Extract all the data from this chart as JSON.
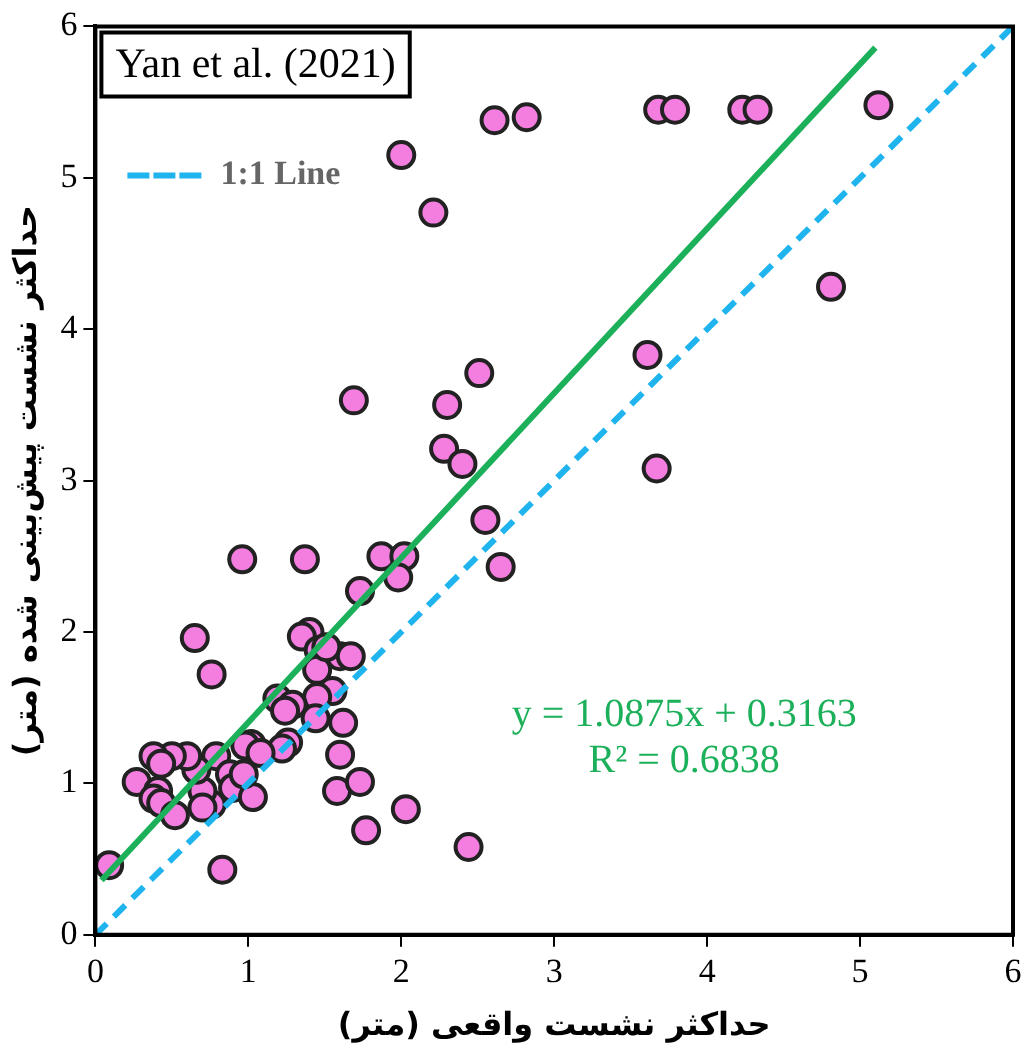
{
  "chart_data": {
    "type": "scatter",
    "xlabel": "حداکثر نشست واقعی (متر)",
    "ylabel": "حداکثر نشست پیش‌بینی شده (متر)",
    "xlim": [
      0,
      6
    ],
    "ylim": [
      0,
      6
    ],
    "xticks": [
      0,
      1,
      2,
      3,
      4,
      5,
      6
    ],
    "yticks": [
      0,
      1,
      2,
      3,
      4,
      5,
      6
    ],
    "grid": false,
    "legend": "top left",
    "annotations": [
      "Yan et al. (2021)",
      "y = 1.0875x + 0.3163",
      "R² = 0.6838"
    ],
    "series": [
      {
        "type": "scatter",
        "color": "#f47ee0",
        "marker": "circle",
        "x": [
          2.61,
          2.82,
          3.68,
          3.79,
          4.23,
          4.33,
          5.12,
          2.0,
          2.21,
          4.81,
          3.61,
          2.51,
          1.69,
          2.3,
          2.28,
          2.4,
          3.67,
          2.55,
          2.65,
          0.96,
          1.37,
          1.87,
          2.02,
          1.98,
          1.73,
          1.4,
          1.35,
          0.65,
          0.76,
          1.46,
          1.45,
          1.55,
          1.45,
          1.19,
          1.29,
          1.24,
          1.44,
          1.62,
          1.6,
          1.58,
          1.73,
          1.77,
          2.03,
          1.26,
          1.22,
          1.02,
          0.98,
          1.08,
          0.79,
          0.88,
          0.9,
          1.03,
          0.76,
          0.7,
          0.66,
          0.6,
          0.5,
          0.38,
          0.43,
          0.27,
          0.41,
          0.38,
          0.43,
          0.52,
          0.83,
          0.09,
          0.7,
          0.97,
          2.44,
          1.6,
          1.51,
          1.67
        ],
        "values": [
          5.38,
          5.4,
          5.45,
          5.45,
          5.45,
          5.45,
          5.48,
          5.15,
          4.77,
          4.28,
          3.83,
          3.71,
          3.53,
          3.5,
          3.21,
          3.11,
          3.08,
          2.74,
          2.43,
          2.48,
          2.48,
          2.5,
          2.5,
          2.36,
          2.27,
          2.0,
          1.97,
          1.96,
          1.72,
          1.88,
          1.75,
          1.61,
          1.57,
          1.56,
          1.52,
          1.48,
          1.43,
          1.4,
          1.19,
          0.95,
          1.01,
          0.69,
          0.83,
          1.27,
          1.23,
          1.26,
          1.25,
          1.2,
          1.18,
          1.06,
          0.97,
          0.91,
          0.86,
          0.95,
          1.09,
          1.18,
          1.18,
          1.18,
          1.13,
          1.01,
          0.95,
          0.9,
          0.87,
          0.79,
          0.43,
          0.46,
          0.84,
          1.06,
          0.58,
          1.84,
          1.9,
          1.84
        ]
      },
      {
        "type": "line",
        "color": "#1cb05a",
        "line_style": "solid",
        "marker": "none",
        "x": [
          0.04,
          5.1
        ],
        "values": [
          0.36,
          5.86
        ]
      },
      {
        "type": "line",
        "name": "1:1 Line",
        "color": "#1fb4ee",
        "line_style": "dashed",
        "marker": "none",
        "x": [
          0,
          6
        ],
        "values": [
          0,
          6
        ]
      }
    ]
  }
}
